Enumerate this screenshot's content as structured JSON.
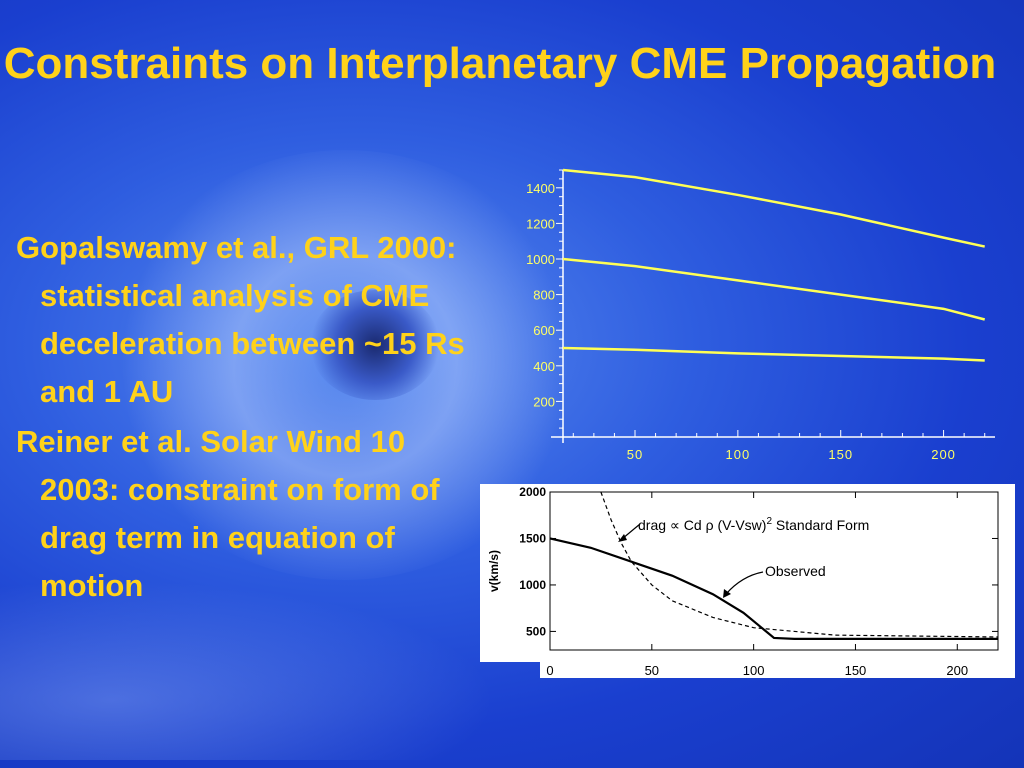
{
  "slide": {
    "title": "Constraints on Interplanetary CME Propagation",
    "bullets": [
      "Gopalswamy et al., GRL 2000: statistical analysis of CME deceleration between ~15 Rs and 1 AU",
      "Reiner et al. Solar Wind 10 2003: constraint on form of drag term in equation of motion"
    ]
  },
  "colors": {
    "title": "#ffd21a",
    "curve_yellow": "#ffff55",
    "background": "#1f48d6"
  },
  "chart_data": [
    {
      "type": "line",
      "xlim": [
        15,
        225
      ],
      "ylim": [
        0,
        1500
      ],
      "xticks": [
        "50",
        "100",
        "150",
        "200"
      ],
      "yticks": [
        "1400",
        "1200",
        "1000",
        "800",
        "600",
        "400",
        "200"
      ],
      "series": [
        {
          "x": [
            15,
            50,
            100,
            150,
            200,
            220
          ],
          "y": [
            1500,
            1460,
            1360,
            1250,
            1120,
            1070
          ]
        },
        {
          "x": [
            15,
            50,
            100,
            150,
            200,
            220
          ],
          "y": [
            1000,
            960,
            880,
            800,
            720,
            660
          ]
        },
        {
          "x": [
            15,
            50,
            100,
            150,
            200,
            220
          ],
          "y": [
            500,
            490,
            470,
            455,
            440,
            430
          ]
        }
      ]
    },
    {
      "type": "line",
      "xlim": [
        0,
        220
      ],
      "ylim": [
        300,
        2000
      ],
      "ylabel": "v(km/s)",
      "xticks": [
        "0",
        "50",
        "100",
        "150",
        "200"
      ],
      "yticks": [
        "2000",
        "1500",
        "1000",
        "500"
      ],
      "annotations": [
        {
          "label": "drag ∝ Cd ρ (V-Vsw)",
          "sup": "2",
          "suffix": "  Standard Form",
          "points_to": "dashed"
        },
        {
          "label": "Observed",
          "points_to": "solid"
        }
      ],
      "series": [
        {
          "style": "solid",
          "x": [
            0,
            20,
            40,
            60,
            80,
            95,
            110,
            120,
            160,
            220
          ],
          "y": [
            1500,
            1400,
            1250,
            1100,
            900,
            700,
            430,
            420,
            420,
            420
          ]
        },
        {
          "style": "dashed",
          "x": [
            25,
            30,
            35,
            40,
            50,
            60,
            80,
            100,
            140,
            220
          ],
          "y": [
            2000,
            1700,
            1450,
            1250,
            1000,
            830,
            650,
            540,
            460,
            440
          ]
        }
      ]
    }
  ]
}
